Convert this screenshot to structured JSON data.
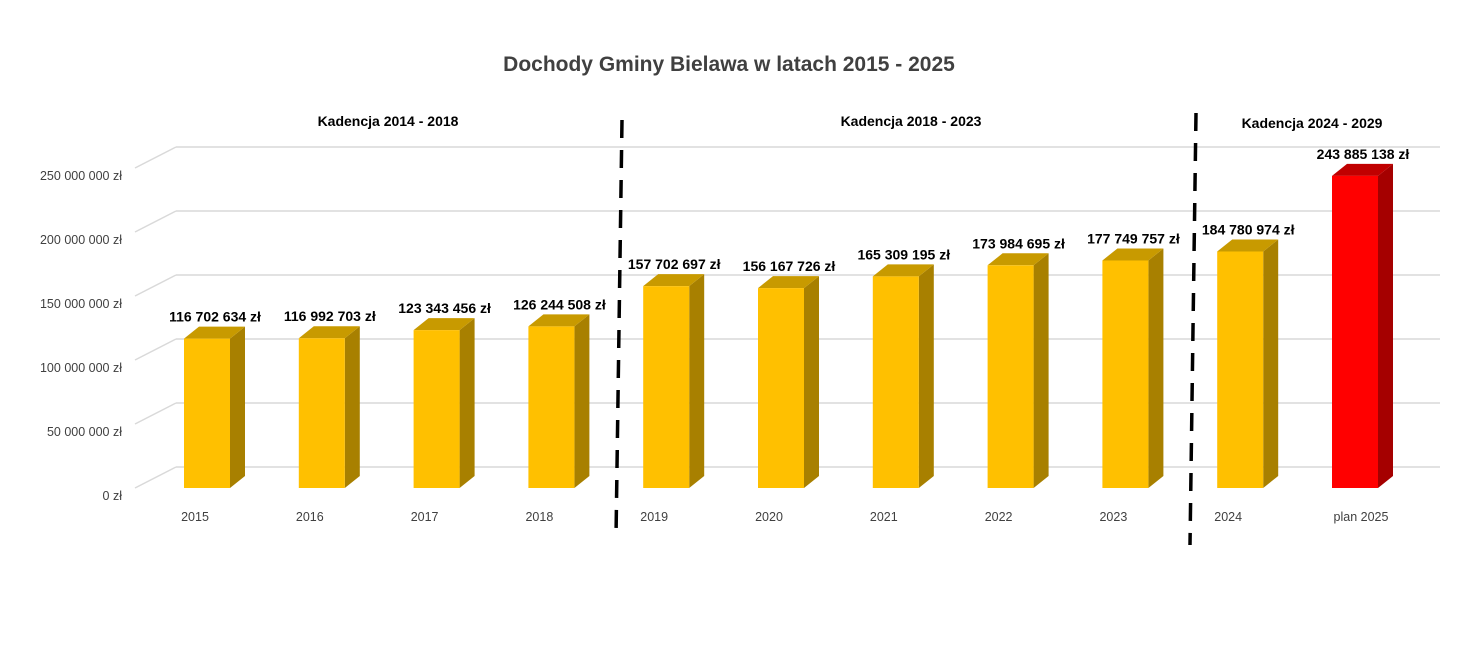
{
  "chart_data": {
    "type": "bar",
    "title": "Dochody Gminy Bielawa w latach 2015 - 2025",
    "xlabel": "",
    "ylabel": "",
    "ylim": [
      0,
      250000000
    ],
    "yticks": [
      0,
      50000000,
      100000000,
      150000000,
      200000000,
      250000000
    ],
    "ytick_labels": [
      "0 zł",
      "50 000 000 zł",
      "100 000 000 zł",
      "150 000 000 zł",
      "200 000 000 zł",
      "250 000 000 zł"
    ],
    "grid": true,
    "categories": [
      "2015",
      "2016",
      "2017",
      "2018",
      "2019",
      "2020",
      "2021",
      "2022",
      "2023",
      "2024",
      "plan 2025"
    ],
    "values": [
      116702634,
      116992703,
      123343456,
      126244508,
      157702697,
      156167726,
      165309195,
      173984695,
      177749757,
      184780974,
      243885138
    ],
    "data_labels": [
      "116 702 634 zł",
      "116 992 703 zł",
      "123 343 456 zł",
      "126 244 508 zł",
      "157 702 697 zł",
      "156 167 726 zł",
      "165 309 195 zł",
      "173 984 695 zł",
      "177 749 757 zł",
      "184 780 974 zł",
      "243 885 138 zł"
    ],
    "bar_colors": [
      "#FFC000",
      "#FFC000",
      "#FFC000",
      "#FFC000",
      "#FFC000",
      "#FFC000",
      "#FFC000",
      "#FFC000",
      "#FFC000",
      "#FFC000",
      "#FF0000"
    ],
    "annotations": [
      {
        "text": "Kadencja 2014 - 2018",
        "span": [
          "2015",
          "2018"
        ]
      },
      {
        "text": "Kadencja 2018 - 2023",
        "span": [
          "2019",
          "2023"
        ]
      },
      {
        "text": "Kadencja 2024 - 2029",
        "span": [
          "2024",
          "plan 2025"
        ]
      }
    ],
    "dividers_after": [
      "2018",
      "2023"
    ]
  }
}
